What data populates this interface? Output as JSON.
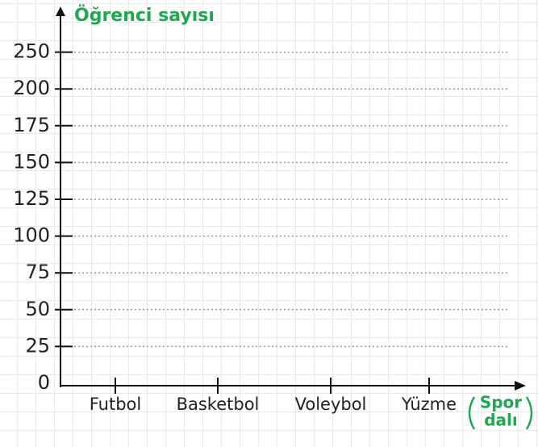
{
  "chart_data": {
    "type": "bar",
    "title": "Öğrenci sayısı",
    "x_label": [
      "Spor",
      "dalı"
    ],
    "categories": [
      "Futbol",
      "Basketbol",
      "Voleybol",
      "Yüzme"
    ],
    "yticks": [
      0,
      25,
      50,
      75,
      100,
      125,
      150,
      175,
      200,
      250
    ],
    "grid": true,
    "color": "#1ea84f"
  }
}
